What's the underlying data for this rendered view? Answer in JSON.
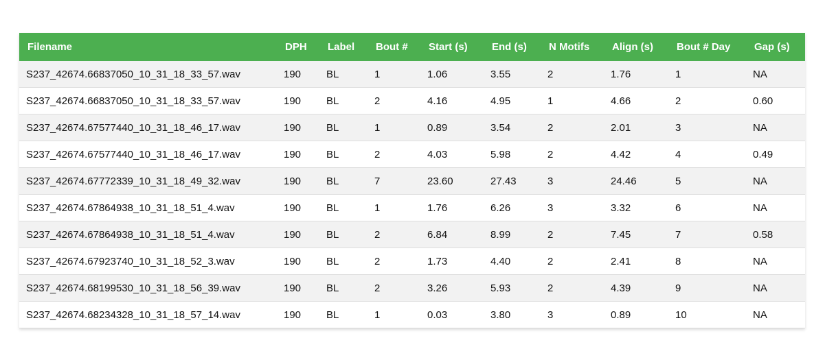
{
  "table": {
    "header_color": "#4CAF50",
    "columns": [
      "Filename",
      "DPH",
      "Label",
      "Bout #",
      "Start (s)",
      "End (s)",
      "N Motifs",
      "Align (s)",
      "Bout # Day",
      "Gap (s)"
    ],
    "rows": [
      [
        "S237_42674.66837050_10_31_18_33_57.wav",
        "190",
        "BL",
        "1",
        "1.06",
        "3.55",
        "2",
        "1.76",
        "1",
        "NA"
      ],
      [
        "S237_42674.66837050_10_31_18_33_57.wav",
        "190",
        "BL",
        "2",
        "4.16",
        "4.95",
        "1",
        "4.66",
        "2",
        "0.60"
      ],
      [
        "S237_42674.67577440_10_31_18_46_17.wav",
        "190",
        "BL",
        "1",
        "0.89",
        "3.54",
        "2",
        "2.01",
        "3",
        "NA"
      ],
      [
        "S237_42674.67577440_10_31_18_46_17.wav",
        "190",
        "BL",
        "2",
        "4.03",
        "5.98",
        "2",
        "4.42",
        "4",
        "0.49"
      ],
      [
        "S237_42674.67772339_10_31_18_49_32.wav",
        "190",
        "BL",
        "7",
        "23.60",
        "27.43",
        "3",
        "24.46",
        "5",
        "NA"
      ],
      [
        "S237_42674.67864938_10_31_18_51_4.wav",
        "190",
        "BL",
        "1",
        "1.76",
        "6.26",
        "3",
        "3.32",
        "6",
        "NA"
      ],
      [
        "S237_42674.67864938_10_31_18_51_4.wav",
        "190",
        "BL",
        "2",
        "6.84",
        "8.99",
        "2",
        "7.45",
        "7",
        "0.58"
      ],
      [
        "S237_42674.67923740_10_31_18_52_3.wav",
        "190",
        "BL",
        "2",
        "1.73",
        "4.40",
        "2",
        "2.41",
        "8",
        "NA"
      ],
      [
        "S237_42674.68199530_10_31_18_56_39.wav",
        "190",
        "BL",
        "2",
        "3.26",
        "5.93",
        "2",
        "4.39",
        "9",
        "NA"
      ],
      [
        "S237_42674.68234328_10_31_18_57_14.wav",
        "190",
        "BL",
        "1",
        "0.03",
        "3.80",
        "3",
        "0.89",
        "10",
        "NA"
      ]
    ]
  }
}
